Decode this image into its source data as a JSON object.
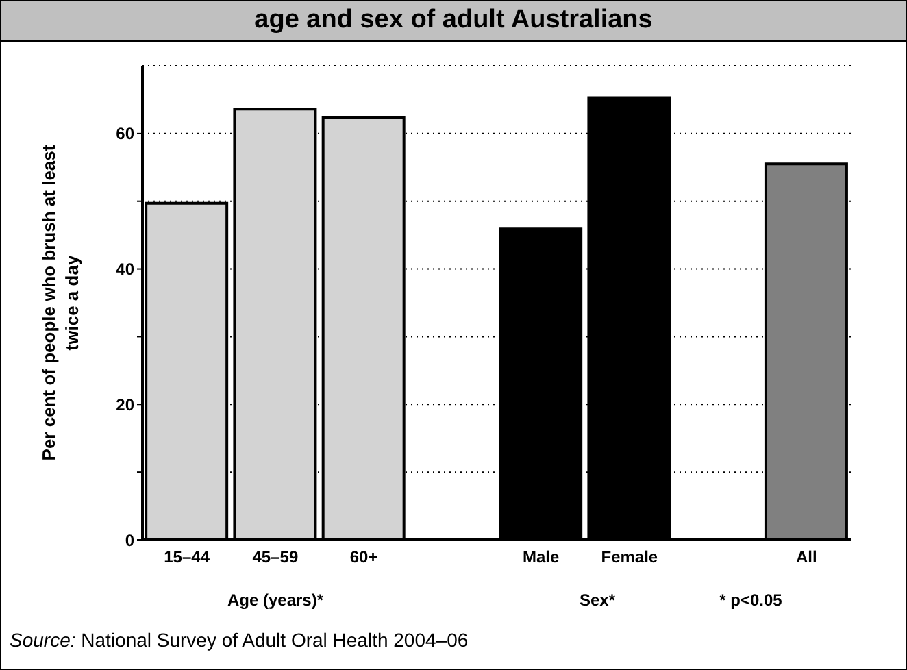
{
  "chart_data": {
    "type": "bar",
    "title": "age and sex of adult Australians",
    "ylabel": "Per cent of people who brush at least twice a day",
    "categories": [
      "15–44",
      "45–59",
      "60+",
      null,
      "Male",
      "Female",
      null,
      "All"
    ],
    "values": [
      49.7,
      63.6,
      62.3,
      null,
      45.9,
      65.3,
      null,
      55.5
    ],
    "colors": [
      "#d3d3d3",
      "#d3d3d3",
      "#d3d3d3",
      "#ffffff",
      "#000000",
      "#000000",
      "#ffffff",
      "#808080"
    ],
    "ylim": [
      0,
      70
    ],
    "yticks": [
      0,
      {
        "value": 10,
        "label": null
      },
      20,
      {
        "value": 30,
        "label": null
      },
      40,
      {
        "value": 50,
        "label": null
      },
      60
    ],
    "grid": "y",
    "annotations": [
      "Age (years)*",
      "Sex*",
      "* p<0.05",
      "Source: National Survey of Adult Oral Health 2004–06"
    ]
  }
}
